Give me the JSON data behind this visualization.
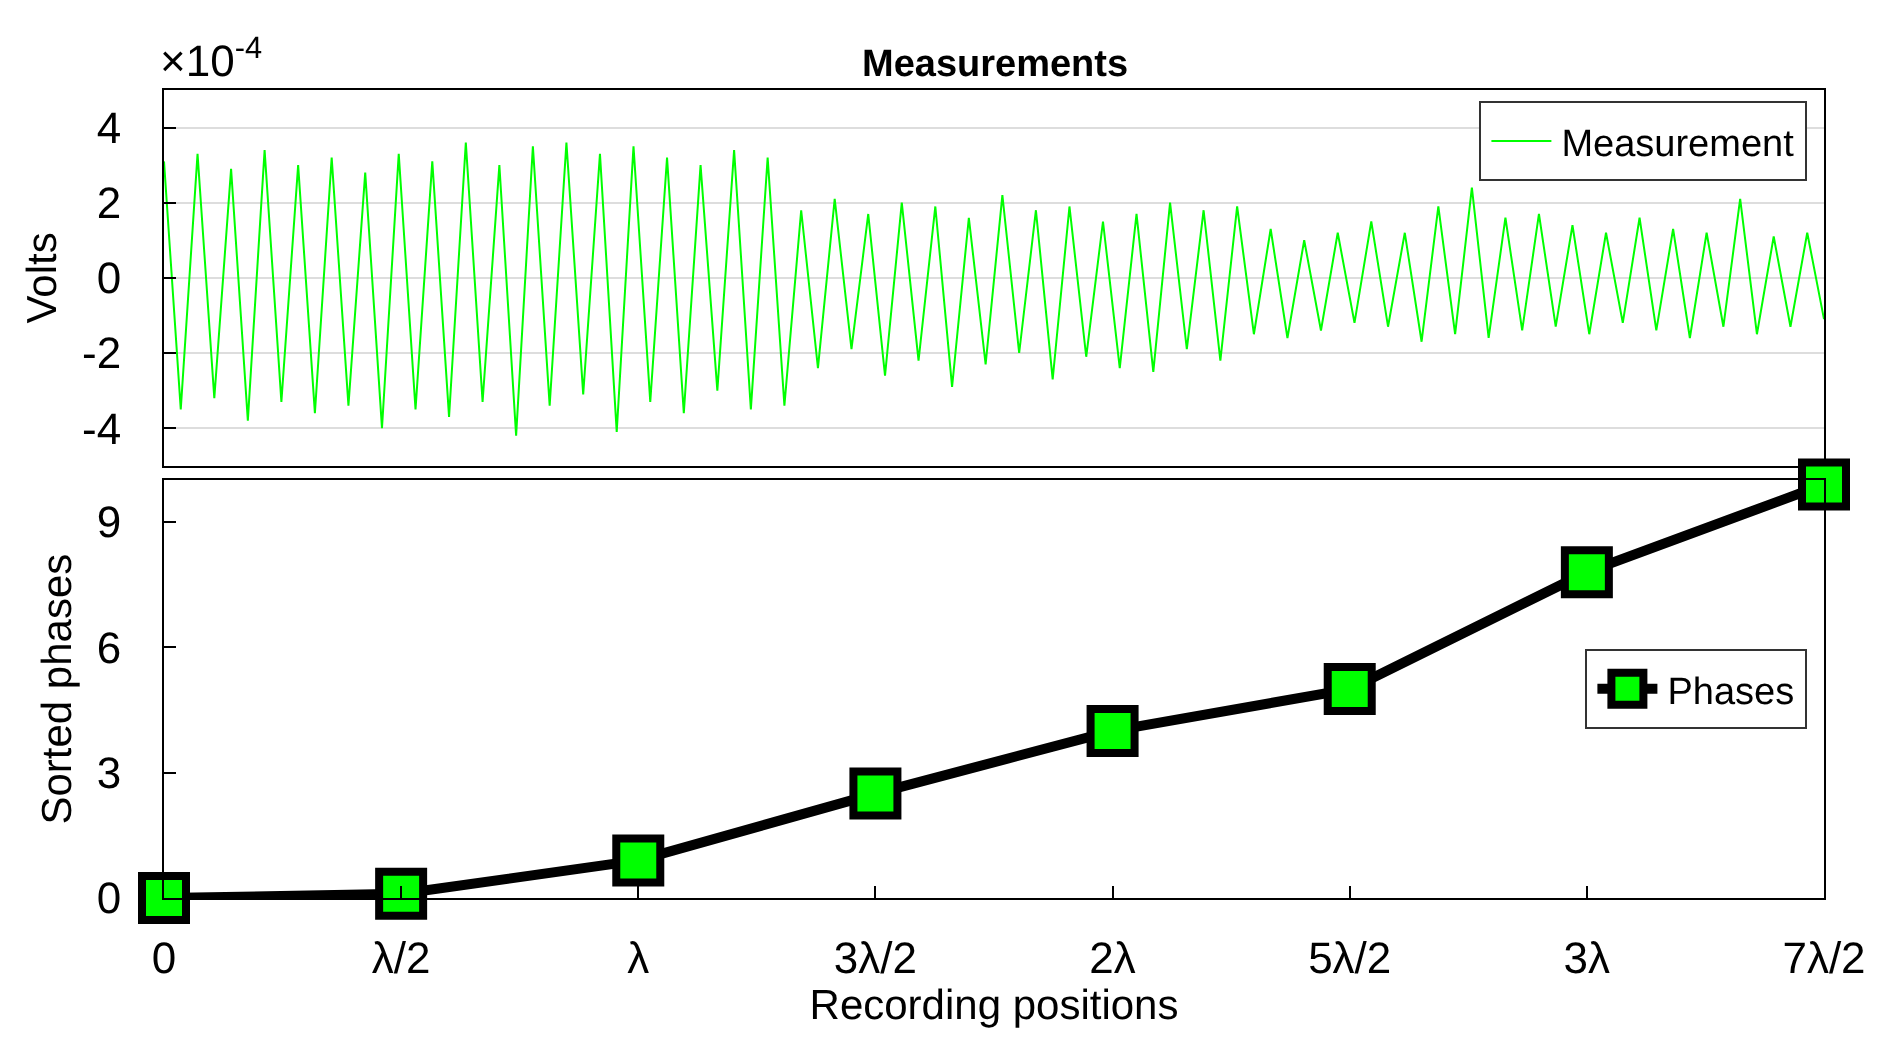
{
  "chart_data": [
    {
      "type": "line",
      "title": "Measurements",
      "ylabel": "Volts",
      "annotations": [
        "×10$^{-4}$"
      ],
      "categories": [
        null,
        null,
        null,
        null,
        null,
        null,
        null,
        null,
        null,
        null,
        null,
        null,
        null,
        null,
        null,
        null,
        null,
        null,
        null,
        null,
        null,
        null,
        null,
        null,
        null,
        null,
        null,
        null,
        null,
        null,
        null,
        null,
        null,
        null,
        null,
        null,
        null,
        null,
        null,
        null,
        null,
        null,
        null,
        null,
        null,
        null,
        null,
        null,
        null,
        null,
        null,
        null,
        null,
        null,
        null,
        null,
        null,
        null,
        null,
        null,
        null,
        null,
        null,
        null,
        null,
        null,
        null,
        null,
        null,
        null,
        null,
        null,
        null,
        null,
        null,
        null,
        null,
        null,
        null,
        null,
        null,
        null,
        null,
        null,
        null,
        null,
        null,
        null,
        null,
        null,
        null,
        null,
        null,
        null,
        null,
        null,
        null,
        null,
        null,
        null
      ],
      "series": [
        {
          "name": "Measurement",
          "color": "#00ff00",
          "values": [
            3.1,
            -3.5,
            3.3,
            -3.2,
            2.9,
            -3.8,
            3.4,
            -3.3,
            3.0,
            -3.6,
            3.2,
            -3.4,
            2.8,
            -4.0,
            3.3,
            -3.5,
            3.1,
            -3.7,
            3.6,
            -3.3,
            3.0,
            -4.2,
            3.5,
            -3.4,
            3.6,
            -3.1,
            3.3,
            -4.1,
            3.5,
            -3.3,
            3.2,
            -3.6,
            3.0,
            -3.0,
            3.4,
            -3.5,
            3.2,
            -3.4,
            1.8,
            -2.4,
            2.1,
            -1.9,
            1.7,
            -2.6,
            2.0,
            -2.2,
            1.9,
            -2.9,
            1.6,
            -2.3,
            2.2,
            -2.0,
            1.8,
            -2.7,
            1.9,
            -2.1,
            1.5,
            -2.4,
            1.7,
            -2.5,
            2.0,
            -1.9,
            1.8,
            -2.2,
            1.9,
            -1.5,
            1.3,
            -1.6,
            1.0,
            -1.4,
            1.2,
            -1.2,
            1.5,
            -1.3,
            1.2,
            -1.7,
            1.9,
            -1.5,
            2.4,
            -1.6,
            1.6,
            -1.4,
            1.7,
            -1.3,
            1.4,
            -1.5,
            1.2,
            -1.2,
            1.6,
            -1.4,
            1.3,
            -1.6,
            1.2,
            -1.3,
            2.1,
            -1.5,
            1.1,
            -1.3,
            1.2,
            -1.1
          ]
        }
      ],
      "ylim": [
        -5,
        5
      ],
      "yticks": [
        -4,
        -2,
        0,
        2,
        4
      ],
      "grid": "y",
      "legend": "top right",
      "tick_labels": "y"
    },
    {
      "type": "line",
      "xlabel": "Recording positions",
      "ylabel": "Sorted phases",
      "categories": [
        "0",
        "λ/2",
        "λ",
        "3λ/2",
        "2λ",
        "5λ/2",
        "3λ",
        "7λ/2"
      ],
      "series": [
        {
          "name": "Phases",
          "color": "#00ff00",
          "values": [
            0,
            0.1,
            0.9,
            2.5,
            4.0,
            5.0,
            7.8,
            9.9
          ]
        }
      ],
      "ylim": [
        0,
        10
      ],
      "yticks": [
        0,
        3,
        6,
        9
      ],
      "grid": false,
      "legend": "right",
      "marker": "square"
    }
  ]
}
